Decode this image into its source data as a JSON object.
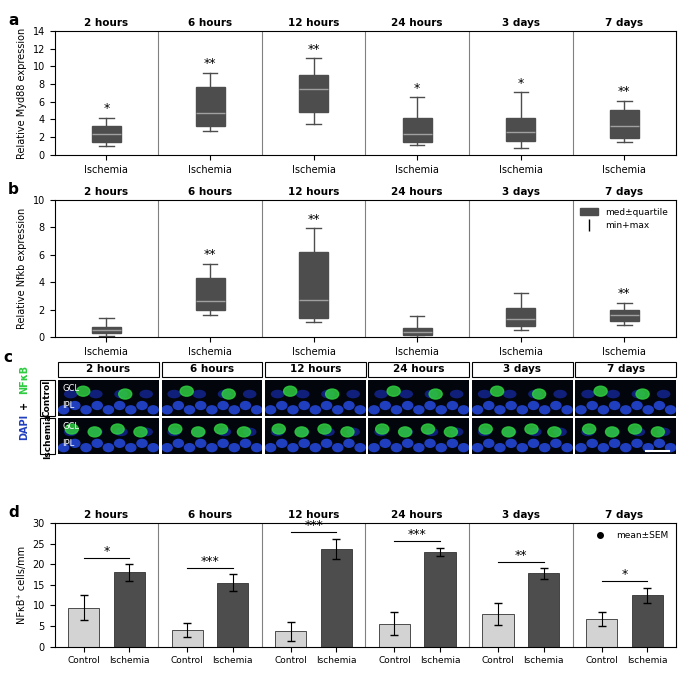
{
  "chart_data": [
    {
      "panel": "a",
      "type": "box",
      "groups": [
        "2 hours",
        "6 hours",
        "12 hours",
        "24 hours",
        "3 days",
        "7 days"
      ],
      "categories": [
        "Ischemia",
        "Ischemia",
        "Ischemia",
        "Ischemia",
        "Ischemia",
        "Ischemia"
      ],
      "boxes": [
        {
          "min": 1.0,
          "q1": 1.5,
          "median": 2.3,
          "q3": 3.3,
          "max": 4.2
        },
        {
          "min": 2.7,
          "q1": 3.2,
          "median": 4.7,
          "q3": 7.7,
          "max": 9.3
        },
        {
          "min": 3.5,
          "q1": 4.8,
          "median": 7.4,
          "q3": 9.0,
          "max": 10.9
        },
        {
          "min": 1.1,
          "q1": 1.5,
          "median": 2.3,
          "q3": 4.2,
          "max": 6.5
        },
        {
          "min": 0.8,
          "q1": 1.6,
          "median": 2.6,
          "q3": 4.2,
          "max": 7.1
        },
        {
          "min": 1.4,
          "q1": 1.9,
          "median": 3.2,
          "q3": 5.1,
          "max": 6.1
        }
      ],
      "significance": [
        "*",
        "**",
        "**",
        "*",
        "*",
        "**"
      ],
      "y_label": "Relative Myd88 expression",
      "color": "#4d4d4d",
      "ylim": [
        0,
        14
      ],
      "yticks": [
        0,
        2,
        4,
        6,
        8,
        10,
        12,
        14
      ]
    },
    {
      "panel": "b",
      "type": "box",
      "groups": [
        "2 hours",
        "6 hours",
        "12 hours",
        "24 hours",
        "3 days",
        "7 days"
      ],
      "categories": [
        "Ischemia",
        "Ischemia",
        "Ischemia",
        "Ischemia",
        "Ischemia",
        "Ischemia"
      ],
      "boxes": [
        {
          "min": 0.1,
          "q1": 0.3,
          "median": 0.5,
          "q3": 0.7,
          "max": 1.4
        },
        {
          "min": 1.6,
          "q1": 2.0,
          "median": 2.6,
          "q3": 4.3,
          "max": 5.3
        },
        {
          "min": 1.1,
          "q1": 1.4,
          "median": 2.7,
          "q3": 6.2,
          "max": 7.9
        },
        {
          "min": 0.0,
          "q1": 0.15,
          "median": 0.4,
          "q3": 0.65,
          "max": 1.5
        },
        {
          "min": 0.5,
          "q1": 0.8,
          "median": 1.3,
          "q3": 2.1,
          "max": 3.2
        },
        {
          "min": 0.9,
          "q1": 1.2,
          "median": 1.6,
          "q3": 2.0,
          "max": 2.5
        }
      ],
      "significance": [
        null,
        "**",
        "**",
        null,
        null,
        "**"
      ],
      "y_label": "Relative Nfkb expression",
      "color": "#4d4d4d",
      "legend": "upper right",
      "legend_entries": [
        "med±quartile",
        "min+max"
      ],
      "ylim": [
        0,
        10
      ],
      "yticks": [
        0,
        2,
        4,
        6,
        8,
        10
      ]
    },
    {
      "panel": "d",
      "type": "bar",
      "groups": [
        "2 hours",
        "6 hours",
        "12 hours",
        "24 hours",
        "3 days",
        "7 days"
      ],
      "series": [
        {
          "name": "Control",
          "color": "#d3d3d3",
          "values": [
            9.5,
            4.0,
            3.8,
            5.6,
            7.9,
            6.8
          ],
          "errors": [
            3.0,
            1.7,
            2.3,
            2.7,
            2.7,
            1.7
          ]
        },
        {
          "name": "Ischemia",
          "color": "#4d4d4d",
          "values": [
            18.0,
            15.5,
            23.7,
            23.0,
            17.8,
            12.5
          ],
          "errors": [
            2.0,
            2.0,
            2.5,
            1.0,
            1.3,
            1.8
          ]
        }
      ],
      "significance": [
        "*",
        "***",
        "***",
        "***",
        "**",
        "*"
      ],
      "y_label": "NFκB⁺ cells/mm",
      "legend": "upper right",
      "legend_entries": [
        "mean±SEM"
      ],
      "ylim": [
        0,
        30
      ],
      "yticks": [
        0,
        5,
        10,
        15,
        20,
        25,
        30
      ]
    }
  ],
  "micrograph": {
    "panel": "c",
    "columns": [
      "2 hours",
      "6 hours",
      "12 hours",
      "24 hours",
      "3 days",
      "7 days"
    ],
    "rows": [
      "Control",
      "Ischemia"
    ],
    "stain": [
      "NFκB",
      "+",
      "DAPI"
    ],
    "colors": [
      "#2ecc40",
      "#000000",
      "#1f3fbf"
    ],
    "layers": [
      "GCL",
      "IPL"
    ]
  }
}
